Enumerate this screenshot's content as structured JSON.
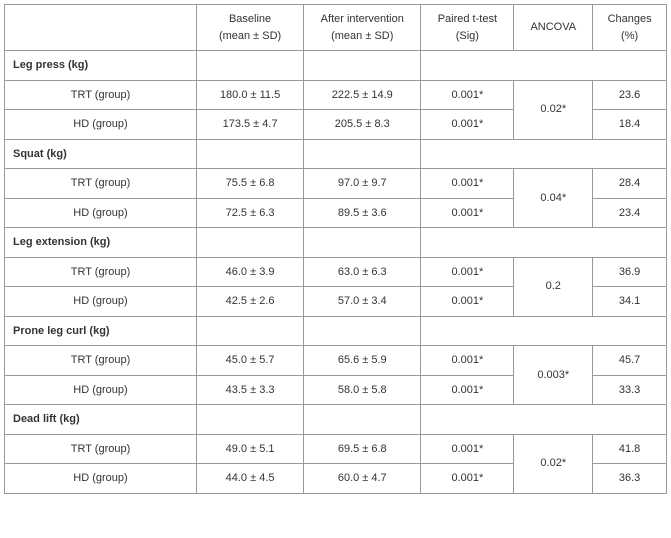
{
  "headers": {
    "baseline_l1": "Baseline",
    "baseline_l2": "(mean ± SD)",
    "after_l1": "After intervention",
    "after_l2": "(mean ± SD)",
    "ttest_l1": "Paired t-test",
    "ttest_l2": "(Sig)",
    "ancova": "ANCOVA",
    "changes_l1": "Changes",
    "changes_l2": "(%)"
  },
  "rows": {
    "trt": "TRT (group)",
    "hd": "HD (group)"
  },
  "sections": {
    "leg_press": {
      "title": "Leg press (kg)",
      "trt": {
        "baseline": "180.0 ± 11.5",
        "after": "222.5 ± 14.9",
        "ttest": "0.001*",
        "changes": "23.6"
      },
      "hd": {
        "baseline": "173.5 ± 4.7",
        "after": "205.5 ± 8.3",
        "ttest": "0.001*",
        "changes": "18.4"
      },
      "ancova": "0.02*"
    },
    "squat": {
      "title": "Squat (kg)",
      "trt": {
        "baseline": "75.5 ± 6.8",
        "after": "97.0 ± 9.7",
        "ttest": "0.001*",
        "changes": "28.4"
      },
      "hd": {
        "baseline": "72.5 ± 6.3",
        "after": "89.5 ± 3.6",
        "ttest": "0.001*",
        "changes": "23.4"
      },
      "ancova": "0.04*"
    },
    "leg_ext": {
      "title": "Leg extension (kg)",
      "trt": {
        "baseline": "46.0 ± 3.9",
        "after": "63.0 ± 6.3",
        "ttest": "0.001*",
        "changes": "36.9"
      },
      "hd": {
        "baseline": "42.5 ± 2.6",
        "after": "57.0 ± 3.4",
        "ttest": "0.001*",
        "changes": "34.1"
      },
      "ancova": "0.2"
    },
    "prone": {
      "title": "Prone leg curl (kg)",
      "trt": {
        "baseline": "45.0 ± 5.7",
        "after": "65.6 ± 5.9",
        "ttest": "0.001*",
        "changes": "45.7"
      },
      "hd": {
        "baseline": "43.5 ± 3.3",
        "after": "58.0 ± 5.8",
        "ttest": "0.001*",
        "changes": "33.3"
      },
      "ancova": "0.003*"
    },
    "dead": {
      "title": "Dead lift (kg)",
      "trt": {
        "baseline": "49.0 ± 5.1",
        "after": "69.5 ± 6.8",
        "ttest": "0.001*",
        "changes": "41.8"
      },
      "hd": {
        "baseline": "44.0 ± 4.5",
        "after": "60.0 ± 4.7",
        "ttest": "0.001*",
        "changes": "36.3"
      },
      "ancova": "0.02*"
    }
  },
  "style": {
    "border_color": "#999999",
    "text_color": "#333333",
    "font_size_pt": 8,
    "background": "#ffffff"
  }
}
